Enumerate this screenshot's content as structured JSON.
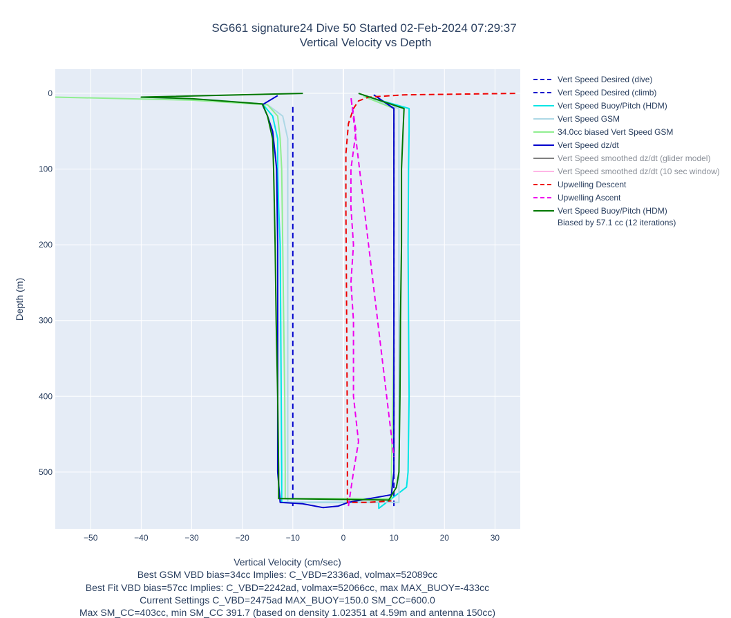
{
  "chart_data": {
    "type": "line",
    "title": "SG661 signature24 Dive 50 Started 02-Feb-2024 07:29:37",
    "subtitle": "Vertical Velocity vs Depth",
    "xlabel": "Vertical Velocity (cm/sec)",
    "ylabel": "Depth (m)",
    "xlim": [
      -57,
      35
    ],
    "ylim": [
      575,
      -32
    ],
    "y_reversed": true,
    "grid": true,
    "legend_position": "right",
    "x_ticks": [
      -50,
      -40,
      -30,
      -20,
      -10,
      0,
      10,
      20,
      30
    ],
    "y_ticks": [
      0,
      100,
      200,
      300,
      400,
      500
    ],
    "series": [
      {
        "name": "Vert Speed Desired (dive)",
        "color": "#0000cc",
        "dash": "dash",
        "x": [
          -10,
          -10
        ],
        "y": [
          18,
          545
        ]
      },
      {
        "name": "Vert Speed Desired (climb)",
        "color": "#0000cc",
        "dash": "dash",
        "x": [
          10,
          10
        ],
        "y": [
          545,
          18
        ]
      },
      {
        "name": "Vert Speed Buoy/Pitch (HDM)",
        "color": "#00e5e5",
        "dash": "solid",
        "x": [
          -30,
          -25,
          -16,
          -14,
          -13,
          -13,
          -12.8,
          -12.5,
          -12.4,
          -12.3,
          -12.2,
          -12.2,
          7,
          7,
          12.5,
          12.8,
          13,
          12.9,
          12.8,
          12.9,
          13,
          13,
          4
        ],
        "y": [
          8,
          10,
          14,
          30,
          60,
          100,
          150,
          200,
          300,
          400,
          500,
          540,
          540,
          548,
          520,
          500,
          400,
          300,
          200,
          100,
          50,
          20,
          3
        ]
      },
      {
        "name": "Vert Speed GSM",
        "color": "#add8e6",
        "dash": "solid",
        "x": [
          -40,
          -25,
          -15,
          -12,
          -11,
          -11,
          -11,
          -11,
          -11,
          -11,
          -11,
          -11,
          11,
          11,
          11,
          11,
          11,
          11,
          11,
          11,
          11,
          4
        ],
        "y": [
          5,
          9,
          15,
          30,
          60,
          100,
          200,
          300,
          400,
          500,
          530,
          540,
          540,
          520,
          500,
          400,
          300,
          200,
          100,
          50,
          20,
          4
        ]
      },
      {
        "name": "34.0cc biased Vert Speed GSM",
        "color": "#90ee90",
        "dash": "solid",
        "x": [
          -57,
          -30,
          -15,
          -13,
          -12.5,
          -12.2,
          -12,
          -11.8,
          -11.6,
          -11.5,
          -11.5,
          9.5,
          9.5,
          9.8,
          10,
          10,
          10,
          10,
          10,
          4
        ],
        "y": [
          5,
          9,
          15,
          30,
          60,
          100,
          200,
          300,
          400,
          500,
          535,
          535,
          500,
          400,
          300,
          200,
          100,
          50,
          20,
          4
        ]
      },
      {
        "name": "Vert Speed dz/dt",
        "color": "#0000cc",
        "dash": "solid",
        "x": [
          -13,
          -16,
          -15,
          -14,
          -13.5,
          -13.2,
          -13,
          -13,
          -13,
          -13,
          -12.5,
          -8,
          -4,
          -1,
          1,
          9.5,
          10,
          10,
          10,
          10,
          10,
          10,
          10,
          6
        ],
        "y": [
          3,
          15,
          30,
          50,
          80,
          100,
          200,
          300,
          400,
          500,
          540,
          542,
          547,
          545,
          540,
          530,
          500,
          400,
          300,
          200,
          100,
          50,
          20,
          2
        ]
      },
      {
        "name": "Vert Speed smoothed dz/dt (glider model)",
        "color": "#808080",
        "dash": "solid",
        "x": [],
        "y": []
      },
      {
        "name": "Vert Speed smoothed dz/dt (10 sec window)",
        "color": "#ffb6e6",
        "dash": "solid",
        "x": [],
        "y": []
      },
      {
        "name": "Upwelling Descent",
        "color": "#ee0000",
        "dash": "dash",
        "x": [
          34,
          12,
          5,
          3,
          2,
          1,
          0.5,
          0.5,
          0.6,
          0.7,
          0.8,
          0.8,
          0.8,
          5,
          9.5
        ],
        "y": [
          0,
          2,
          5,
          10,
          20,
          40,
          80,
          150,
          250,
          350,
          450,
          500,
          540,
          540,
          538
        ]
      },
      {
        "name": "Upwelling Ascent",
        "color": "#ee00ee",
        "dash": "dash",
        "x": [
          1,
          2,
          3,
          2,
          2,
          1.5,
          2,
          1.5,
          1.5,
          2.5,
          1.5,
          10
        ],
        "y": [
          545,
          500,
          460,
          400,
          300,
          250,
          200,
          150,
          100,
          50,
          5,
          480
        ]
      },
      {
        "name": "Vert Speed Buoy/Pitch (HDM)",
        "name_line2": "Biased by 57.1 cc (12 iterations)",
        "color": "#007700",
        "dash": "solid",
        "x": [
          -8,
          -40,
          -30,
          -16,
          -15,
          -14,
          -13.8,
          -13.5,
          -13.3,
          -13,
          -12.8,
          -12.8,
          9,
          10.5,
          11,
          11.2,
          11.3,
          11.5,
          11.5,
          11.8,
          12,
          3
        ],
        "y": [
          0,
          5,
          7,
          14,
          30,
          60,
          100,
          200,
          300,
          400,
          500,
          535,
          537,
          520,
          500,
          400,
          300,
          200,
          100,
          50,
          20,
          0
        ]
      }
    ],
    "notes": [
      "Best GSM VBD bias=34cc Implies: C_VBD=2336ad, volmax=52089cc",
      "Best Fit VBD bias=57cc Implies: C_VBD=2242ad, volmax=52066cc, max MAX_BUOY=-433cc",
      "Current Settings C_VBD=2475ad MAX_BUOY=150.0 SM_CC=600.0",
      "Max SM_CC=403cc, min SM_CC 391.7 (based on density 1.02351 at 4.59m and antenna 150cc)"
    ]
  }
}
